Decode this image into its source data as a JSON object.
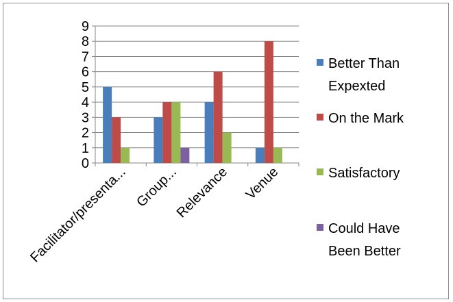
{
  "chart_data": {
    "type": "bar",
    "title": "",
    "xlabel": "",
    "ylabel": "",
    "categories": [
      "Facilitator/presenta...",
      "Group...",
      "Relevance",
      "Venue"
    ],
    "series": [
      {
        "name": "Better Than Expexted",
        "legend_lines": [
          "Better Than",
          "Expexted"
        ],
        "color": "#4a7ebb",
        "values": [
          5,
          3,
          4,
          1
        ]
      },
      {
        "name": "On the Mark",
        "legend_lines": [
          "On the Mark"
        ],
        "color": "#be4b48",
        "values": [
          3,
          4,
          6,
          8
        ]
      },
      {
        "name": "Satisfactory",
        "legend_lines": [
          "Satisfactory"
        ],
        "color": "#98b954",
        "values": [
          1,
          4,
          2,
          1
        ]
      },
      {
        "name": "Could Have Been Better",
        "legend_lines": [
          "Could Have",
          "Been Better"
        ],
        "color": "#7d60a0",
        "values": [
          0,
          1,
          0,
          0
        ]
      }
    ],
    "ylim": [
      0,
      9
    ],
    "yticks": [
      "0",
      "1",
      "2",
      "3",
      "4",
      "5",
      "6",
      "7",
      "8",
      "9"
    ],
    "grid": true,
    "legend_position": "right"
  }
}
